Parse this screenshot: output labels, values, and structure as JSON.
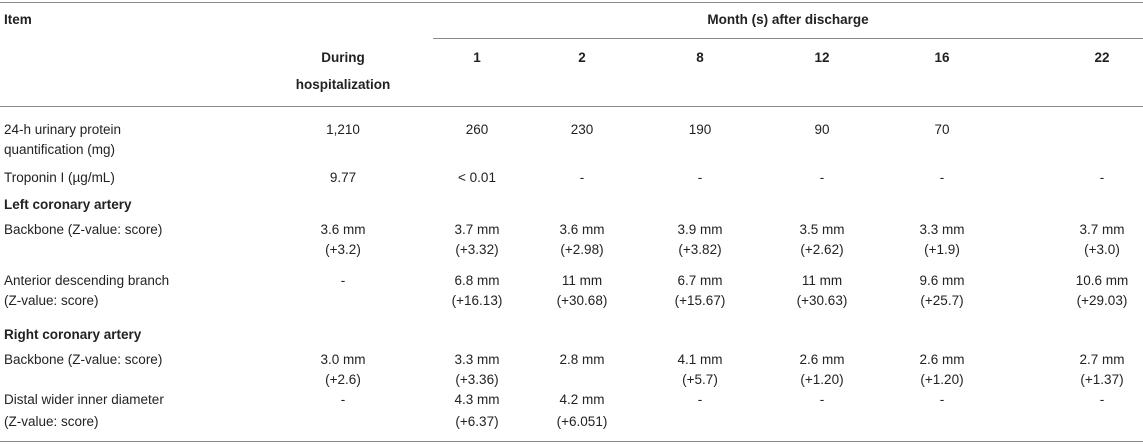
{
  "table": {
    "header": {
      "item": "Item",
      "group": "Month (s) after discharge",
      "columns": [
        [
          "During",
          "hospitalization"
        ],
        [
          "1"
        ],
        [
          "2"
        ],
        [
          "8"
        ],
        [
          "12"
        ],
        [
          "16"
        ],
        [
          "22"
        ]
      ]
    },
    "rows": [
      {
        "label": [
          "24-h urinary protein",
          "quantification (mg)"
        ],
        "cells": [
          [
            "1,210"
          ],
          [
            "260"
          ],
          [
            "230"
          ],
          [
            "190"
          ],
          [
            "90"
          ],
          [
            "70"
          ],
          null
        ]
      },
      {
        "label": [
          "Troponin I (µg/mL)"
        ],
        "cells": [
          [
            "9.77"
          ],
          [
            "< 0.01"
          ],
          [
            "-"
          ],
          [
            "-"
          ],
          [
            "-"
          ],
          [
            "-"
          ],
          [
            "-"
          ]
        ]
      },
      {
        "section": "Left coronary artery"
      },
      {
        "label": [
          "Backbone (Z-value: score)"
        ],
        "cells": [
          [
            "3.6 mm",
            "(+3.2)"
          ],
          [
            "3.7 mm",
            "(+3.32)"
          ],
          [
            "3.6 mm",
            "(+2.98)"
          ],
          [
            "3.9 mm",
            "(+3.82)"
          ],
          [
            "3.5 mm",
            "(+2.62)"
          ],
          [
            "3.3 mm",
            "(+1.9)"
          ],
          [
            "3.7 mm",
            "(+3.0)"
          ]
        ]
      },
      {
        "label": [
          "Anterior descending branch",
          "(Z-value: score)"
        ],
        "cells": [
          [
            "-"
          ],
          [
            "6.8 mm",
            "(+16.13)"
          ],
          [
            "11 mm",
            "(+30.68)"
          ],
          [
            "6.7 mm",
            "(+15.67)"
          ],
          [
            "11 mm",
            "(+30.63)"
          ],
          [
            "9.6 mm",
            "(+25.7)"
          ],
          [
            "10.6 mm",
            "(+29.03)"
          ]
        ]
      },
      {
        "section": "Right coronary artery"
      },
      {
        "label": [
          "Backbone (Z-value: score)"
        ],
        "cells": [
          [
            "3.0 mm",
            "(+2.6)"
          ],
          [
            "3.3 mm",
            "(+3.36)"
          ],
          [
            "2.8 mm"
          ],
          [
            "4.1 mm",
            "(+5.7)"
          ],
          [
            "2.6 mm",
            "(+1.20)"
          ],
          [
            "2.6 mm",
            "(+1.20)"
          ],
          [
            "2.7 mm",
            "(+1.37)"
          ]
        ]
      },
      {
        "label": [
          "Distal wider inner diameter",
          "(Z-value: score)"
        ],
        "cells": [
          [
            "-"
          ],
          [
            "4.3 mm",
            "(+6.37)"
          ],
          [
            "4.2 mm",
            "(+6.051)"
          ],
          [
            "-"
          ],
          [
            "-"
          ],
          [
            "-"
          ],
          [
            "-"
          ]
        ]
      }
    ]
  }
}
